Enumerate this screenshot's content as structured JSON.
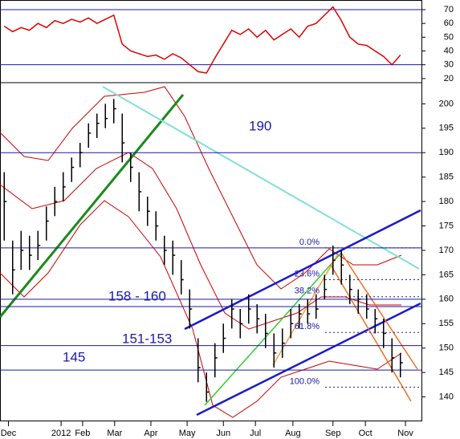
{
  "chart_data": [
    {
      "type": "line",
      "x": [
        1,
        3,
        5,
        7,
        9,
        11,
        13,
        15,
        17,
        19,
        21,
        23,
        25,
        27,
        29,
        31,
        33,
        35,
        37,
        39,
        41,
        43,
        45,
        47,
        49,
        51,
        53,
        55,
        57,
        59,
        61,
        63,
        65,
        67,
        69,
        71,
        73,
        75,
        77,
        79,
        81,
        83,
        85,
        87,
        89,
        91,
        93,
        95
      ],
      "series": [
        {
          "color": "#e00000",
          "values": [
            58,
            54,
            57,
            55,
            60,
            57,
            62,
            60,
            63,
            61,
            64,
            60,
            63,
            66,
            45,
            40,
            38,
            36,
            37,
            34,
            38,
            35,
            30,
            25,
            24,
            35,
            45,
            55,
            52,
            56,
            50,
            55,
            48,
            52,
            56,
            50,
            58,
            60,
            66,
            72,
            62,
            50,
            45,
            44,
            40,
            36,
            30,
            37
          ]
        }
      ],
      "xlim": [
        0,
        100
      ],
      "ylim": [
        17,
        77
      ],
      "yticks": [
        20,
        30,
        40,
        50,
        60,
        70
      ],
      "hlines": [
        70,
        30
      ],
      "hline_color": "#1a1aa8"
    },
    {
      "type": "ohlc",
      "x": [
        1,
        3,
        5,
        7,
        9,
        11,
        13,
        15,
        17,
        19,
        21,
        23,
        25,
        27,
        29,
        31,
        33,
        35,
        37,
        39,
        41,
        43,
        45,
        47,
        49,
        51,
        53,
        55,
        57,
        59,
        61,
        63,
        65,
        67,
        69,
        71,
        73,
        75,
        77,
        79,
        81,
        83,
        85,
        87,
        89,
        91,
        93,
        95
      ],
      "high": [
        186,
        172,
        174,
        173,
        174,
        179,
        183,
        186,
        189,
        192,
        196,
        198,
        200,
        201,
        198,
        190,
        186,
        181,
        178,
        173,
        172,
        168,
        162,
        152,
        145,
        151,
        155,
        160,
        158,
        161,
        159,
        157,
        153,
        154,
        158,
        159,
        160,
        161,
        165,
        171,
        170,
        165,
        162,
        161,
        158,
        156,
        152,
        149
      ],
      "low": [
        172,
        161,
        166,
        166,
        168,
        172,
        177,
        180,
        184,
        187,
        191,
        193,
        195,
        196,
        188,
        184,
        178,
        175,
        172,
        167,
        165,
        161,
        154,
        143,
        139,
        144,
        149,
        154,
        152,
        155,
        153,
        150,
        146,
        148,
        152,
        154,
        155,
        156,
        160,
        165,
        163,
        159,
        157,
        156,
        153,
        150,
        145,
        144
      ],
      "close": [
        180,
        166,
        170,
        169,
        171,
        176,
        180,
        183,
        187,
        190,
        194,
        196,
        197,
        199,
        192,
        187,
        182,
        178,
        175,
        170,
        169,
        164,
        158,
        146,
        141,
        148,
        152,
        158,
        155,
        158,
        156,
        153,
        149,
        151,
        155,
        157,
        157,
        158,
        162,
        168,
        167,
        162,
        160,
        158,
        156,
        153,
        148,
        147
      ],
      "color": "#000000",
      "xlim": [
        0,
        100
      ],
      "ylim": [
        135,
        204
      ],
      "yticks": [
        140,
        145,
        150,
        155,
        160,
        165,
        170,
        175,
        180,
        185,
        190,
        195,
        200
      ],
      "xticks": [
        {
          "value": 2,
          "label": "Dec"
        },
        {
          "value": 14.5,
          "label": "2012"
        },
        {
          "value": 19.6,
          "label": "Feb"
        },
        {
          "value": 27.2,
          "label": "Mar"
        },
        {
          "value": 35.8,
          "label": "Apr"
        },
        {
          "value": 44.4,
          "label": "May"
        },
        {
          "value": 53,
          "label": "Jun"
        },
        {
          "value": 60.6,
          "label": "Jul"
        },
        {
          "value": 69.5,
          "label": "Aug"
        },
        {
          "value": 79,
          "label": "Sep"
        },
        {
          "value": 86.7,
          "label": "Oct"
        },
        {
          "value": 96.2,
          "label": "Nov"
        }
      ],
      "hlines": [
        190,
        170.5,
        160,
        158.5,
        150.5,
        145.5
      ],
      "hline_color": "#1a1aa8",
      "fib_levels": [
        {
          "label": "0.0%",
          "value": 170.5
        },
        {
          "label": "23.6%",
          "value": 164
        },
        {
          "label": "38.2%",
          "value": 160.5
        },
        {
          "label": "61.8%",
          "value": 153.2
        },
        {
          "label": "100.0%",
          "value": 142
        }
      ],
      "annotations": [
        "190",
        "158 - 160",
        "151-153",
        "145"
      ]
    }
  ]
}
